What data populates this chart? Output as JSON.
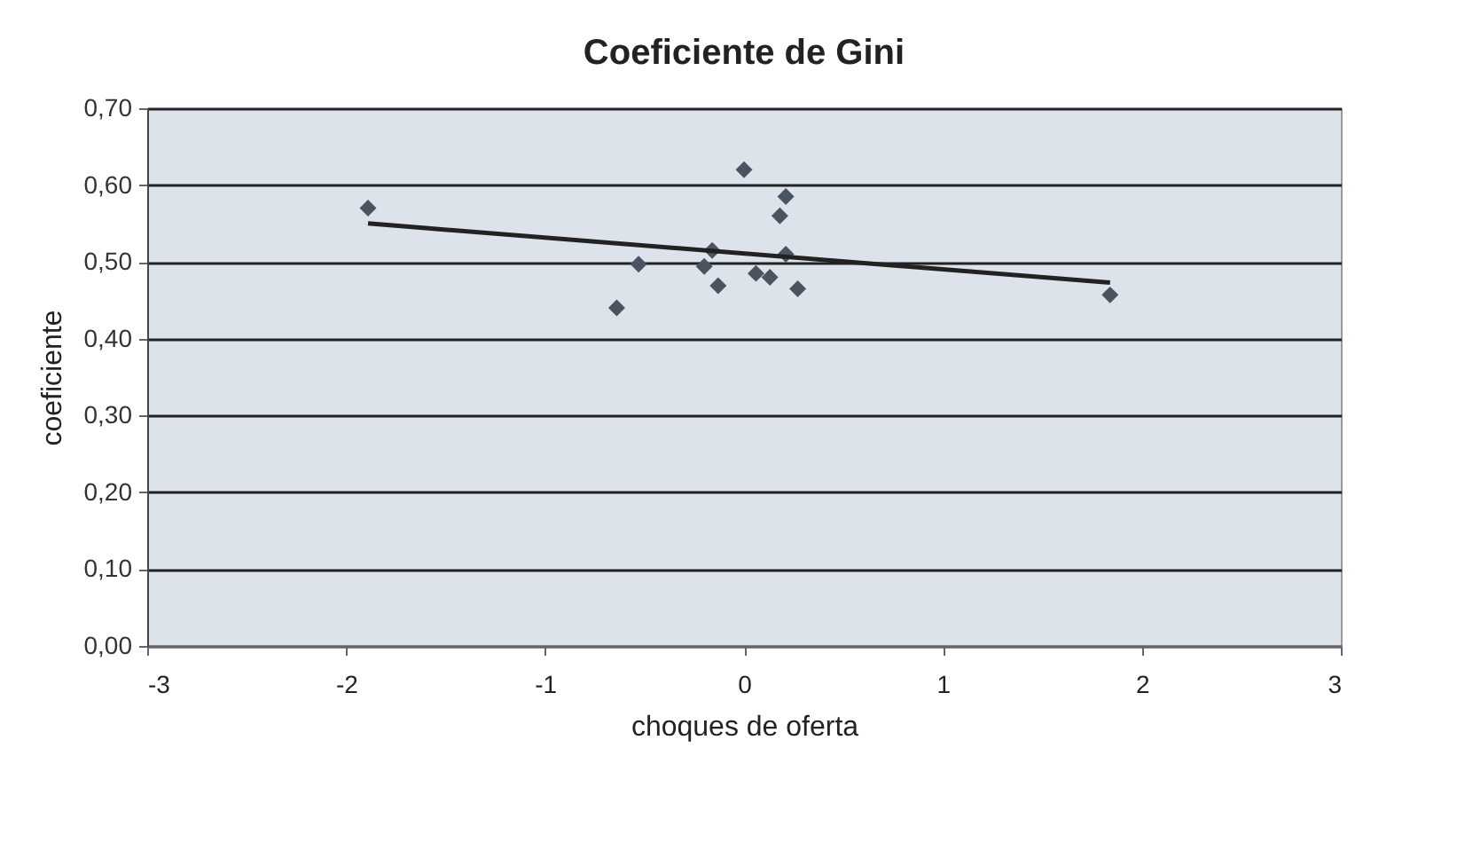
{
  "chart_data": {
    "type": "scatter",
    "title": "Coeficiente de Gini",
    "xlabel": "choques de oferta",
    "ylabel": "coeficiente",
    "x": [
      -1.89,
      0.0,
      0.21,
      0.18,
      -0.53,
      -0.16,
      -0.2,
      -0.13,
      -0.64,
      0.06,
      0.13,
      0.21,
      0.27,
      1.84
    ],
    "series": [
      {
        "color": "#4a5460",
        "marker": "diamond",
        "values": [
          0.57,
          0.62,
          0.585,
          0.56,
          0.497,
          0.515,
          0.494,
          0.469,
          0.44,
          0.485,
          0.48,
          0.51,
          0.465,
          0.457
        ]
      },
      {
        "type": "line",
        "color": "#222222",
        "x": [
          -1.89,
          1.84
        ],
        "values": [
          0.55,
          0.473
        ]
      }
    ],
    "grid": "y",
    "xlim": [
      -3,
      3
    ],
    "xticks": [
      -3,
      -2,
      -1,
      0,
      1,
      2,
      3
    ],
    "ylim": [
      0,
      0.7
    ],
    "yticks": [
      {
        "value": 0,
        "label": "0,00"
      },
      {
        "value": 0.1,
        "label": "0,10"
      },
      {
        "value": 0.2,
        "label": "0,20"
      },
      {
        "value": 0.3,
        "label": "0,30"
      },
      {
        "value": 0.4,
        "label": "0,40"
      },
      {
        "value": 0.5,
        "label": "0,50"
      },
      {
        "value": 0.6,
        "label": "0,60"
      },
      {
        "value": 0.7,
        "label": "0,70"
      }
    ]
  }
}
